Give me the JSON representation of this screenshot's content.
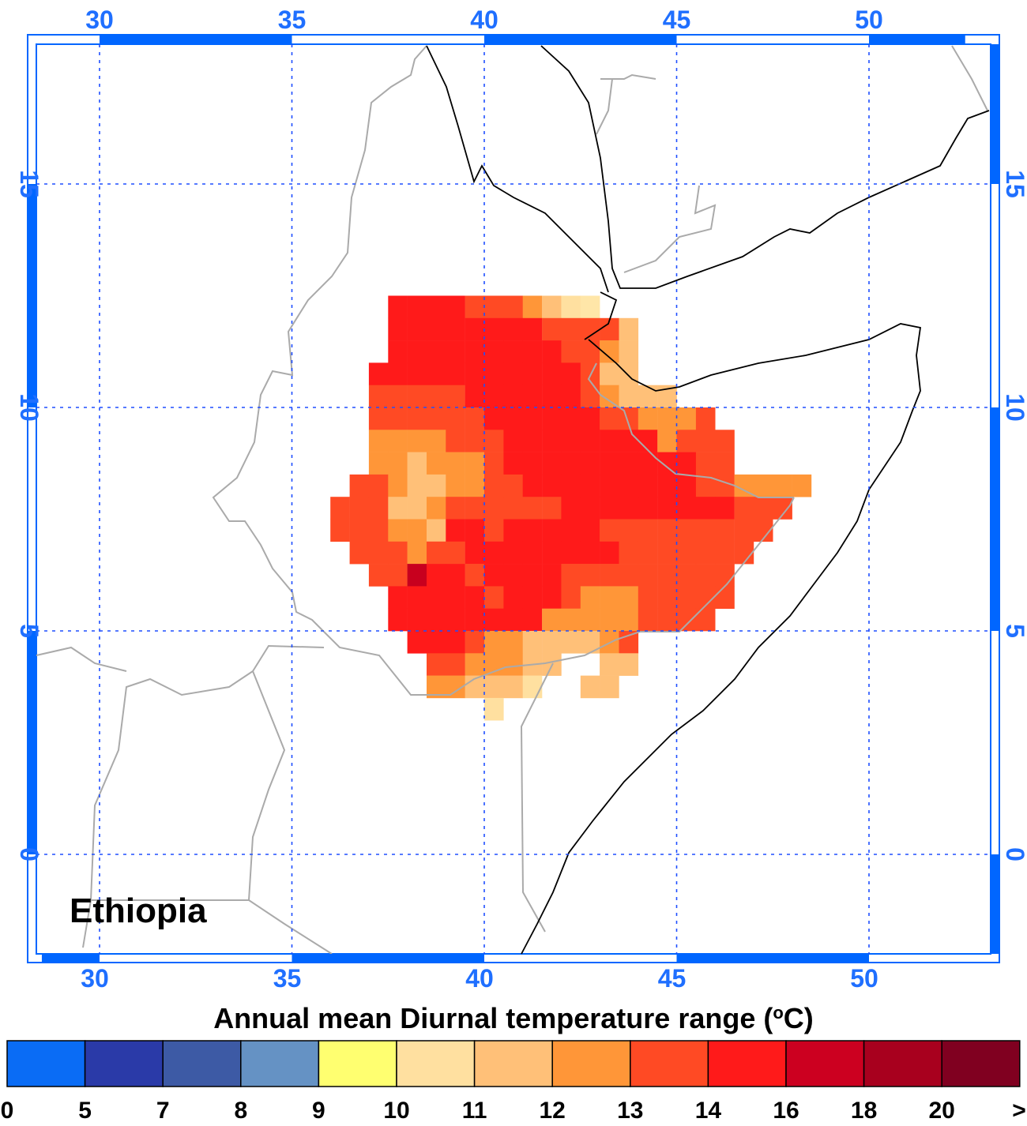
{
  "map": {
    "region_label": "Ethiopia",
    "title": "Annual mean Diurnal temperature range (",
    "title_unit_sup": "o",
    "title_unit_rest": "C)",
    "lon_ticks": [
      "30",
      "35",
      "40",
      "45",
      "50"
    ],
    "lat_ticks": [
      "15",
      "10",
      "5",
      "0"
    ],
    "grid_color": "#1f4fff",
    "axis_color": "#0066ff",
    "border_country_color": "#aaaaaa",
    "coast_color": "#000000"
  },
  "legend": {
    "labels": [
      "0",
      "5",
      "7",
      "8",
      "9",
      "10",
      "11",
      "12",
      "13",
      "14",
      "16",
      "18",
      "20",
      ">"
    ],
    "colors": [
      "#0a6cf5",
      "#2a3aa8",
      "#3d5aa5",
      "#6592c4",
      "#ffff70",
      "#ffe0a0",
      "#ffc078",
      "#ff9638",
      "#ff4a24",
      "#ff1a1a",
      "#cc0020",
      "#a8001e",
      "#800020"
    ]
  },
  "chart_data": {
    "type": "heatmap",
    "title": "Annual mean Diurnal temperature range (°C)",
    "region": "Ethiopia",
    "x_axis": "longitude",
    "y_axis": "latitude",
    "xlim": [
      28.5,
      53
    ],
    "ylim": [
      -2.3,
      18.5
    ],
    "cell_size_deg": 0.5,
    "levels": [
      "9-10",
      "10-11",
      "11-12",
      "12-13",
      "13-14",
      "14-16",
      "16-18"
    ],
    "rows": [
      {
        "lat": 12.25,
        "cells": "......55554443210..........."
      },
      {
        "lat": 11.75,
        "cells": "......5555555544442........."
      },
      {
        "lat": 11.25,
        "cells": "......5555555554432........."
      },
      {
        "lat": 10.75,
        "cells": ".....55555555555422........"
      },
      {
        "lat": 10.25,
        "cells": ".....4444455555543222......"
      },
      {
        "lat": 9.75,
        "cells": ".....444444555555443334....."
      },
      {
        "lat": 9.25,
        "cells": ".....3333444555555553444...."
      },
      {
        "lat": 8.75,
        "cells": ".....3323334555555555544...."
      },
      {
        "lat": 8.25,
        "cells": "....443223344555555555443333"
      },
      {
        "lat": 7.75,
        "cells": "...444223444444555555555444"
      },
      {
        "lat": 7.25,
        "cells": "...44433255455555444444444"
      },
      {
        "lat": 6.75,
        "cells": "....444344555555554444444"
      },
      {
        "lat": 6.25,
        "cells": ".....4465545555444444444"
      },
      {
        "lat": 5.75,
        "cells": "......555554555433344444"
      },
      {
        "lat": 5.25,
        "cells": "......55555555333334444"
      },
      {
        "lat": 4.75,
        "cells": ".......555433222234"
      },
      {
        "lat": 4.25,
        "cells": "........4433322..22"
      },
      {
        "lat": 3.75,
        "cells": "........332221..22"
      },
      {
        "lat": 3.25,
        "cells": "...........1"
      }
    ],
    "start_lon": 34.5
  }
}
